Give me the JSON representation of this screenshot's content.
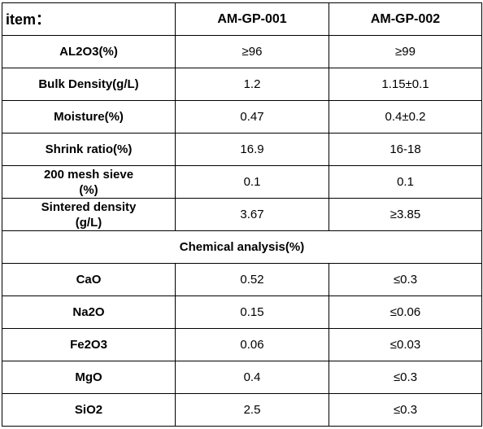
{
  "header": {
    "item_label": "item：",
    "col1": "AM-GP-001",
    "col2": "AM-GP-002"
  },
  "properties": [
    {
      "label": "AL2O3(%)",
      "v1": "≥96",
      "v2": "≥99"
    },
    {
      "label": "Bulk Density(g/L)",
      "v1": "1.2",
      "v2": "1.15±0.1"
    },
    {
      "label": "Moisture(%)",
      "v1": "0.47",
      "v2": "0.4±0.2"
    },
    {
      "label": "Shrink ratio(%)",
      "v1": "16.9",
      "v2": "16-18"
    },
    {
      "label_line1": "200 mesh sieve",
      "label_line2": "(%)",
      "v1": "0.1",
      "v2": "0.1"
    },
    {
      "label_line1": "Sintered density",
      "label_line2": "(g/L)",
      "v1": "3.67",
      "v2": "≥3.85"
    }
  ],
  "chemical_section_title": "Chemical analysis(%)",
  "chemical": [
    {
      "label": "CaO",
      "v1": "0.52",
      "v2": "≤0.3"
    },
    {
      "label": "Na2O",
      "v1": "0.15",
      "v2": "≤0.06"
    },
    {
      "label": "Fe2O3",
      "v1": "0.06",
      "v2": "≤0.03"
    },
    {
      "label": "MgO",
      "v1": "0.4",
      "v2": "≤0.3"
    },
    {
      "label": "SiO2",
      "v1": "2.5",
      "v2": "≤0.3"
    }
  ]
}
